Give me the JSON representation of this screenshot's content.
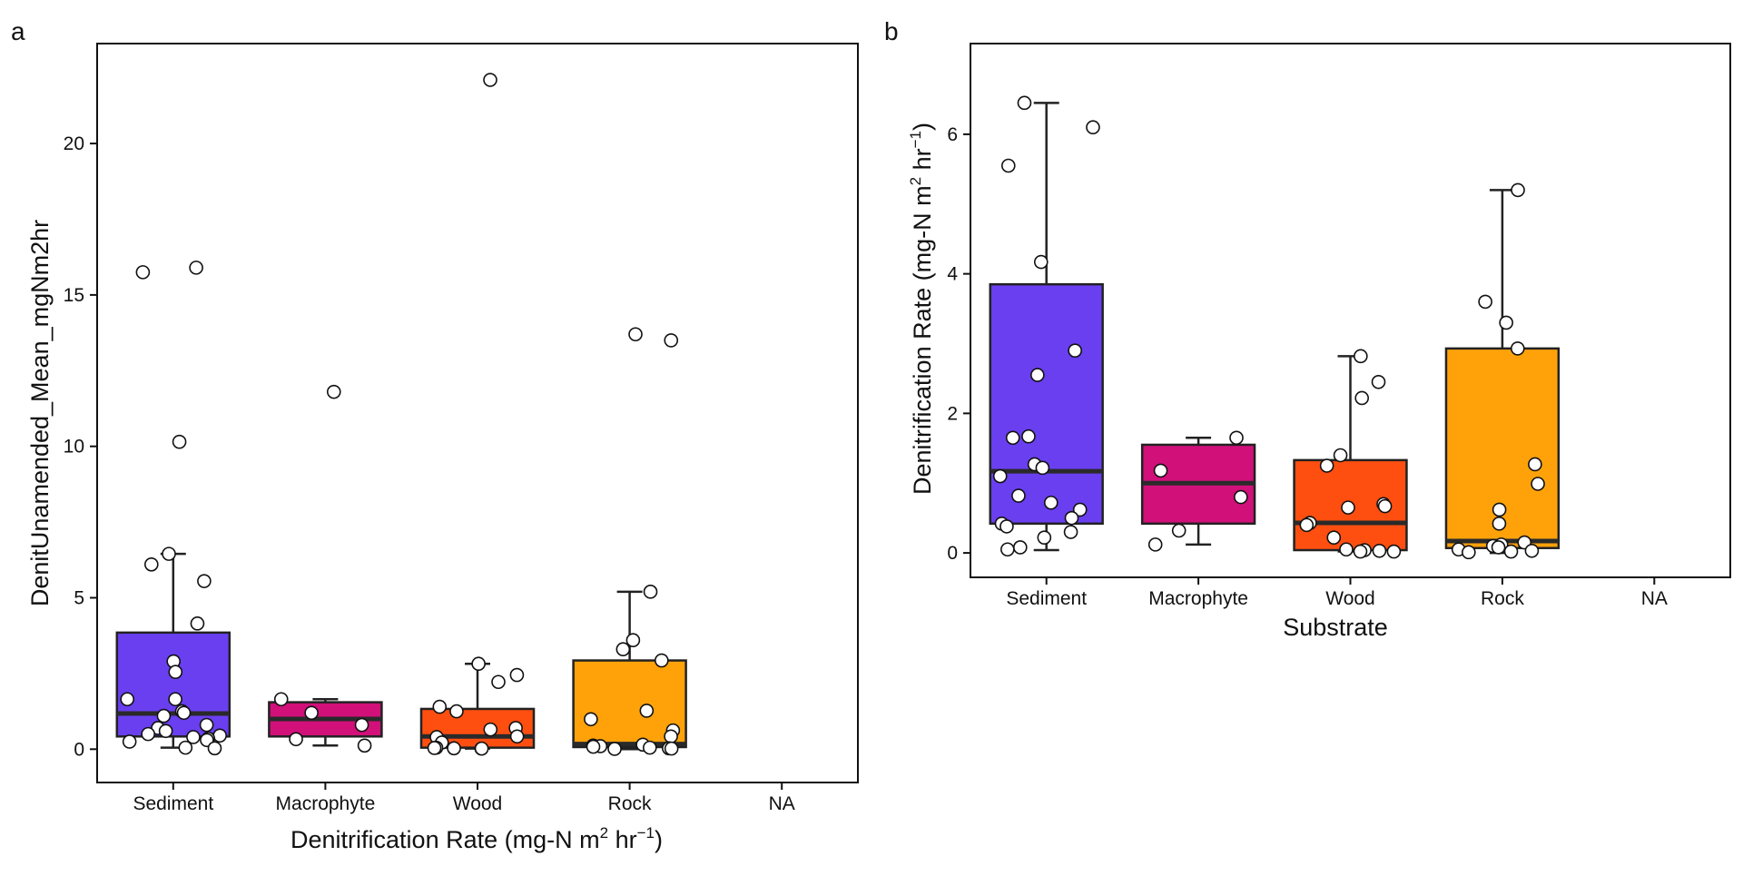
{
  "chart_data": [
    {
      "type": "box",
      "panel_label": "a",
      "categories": [
        "Sediment",
        "Macrophyte",
        "Wood",
        "Rock",
        "NA"
      ],
      "colors": [
        "#6a3ff0",
        "#d1107a",
        "#ff4f10",
        "#ffa20a",
        ""
      ],
      "xlabel": "Denitrification Rate (mg-N m",
      "xlabel_sup1": "2",
      "xlabel_mid": " hr",
      "xlabel_sup2": "−1",
      "xlabel_end": ")",
      "ylabel": "DenitUnamended_Mean_mgNm2hr",
      "ylim": [
        -1.1,
        23.3
      ],
      "yticks": [
        0,
        5,
        10,
        15,
        20
      ],
      "boxes": [
        {
          "category": "Sediment",
          "q1": 0.42,
          "median": 1.18,
          "q3": 3.85,
          "whisker_low": 0.05,
          "whisker_high": 6.45
        },
        {
          "category": "Macrophyte",
          "q1": 0.42,
          "median": 1.0,
          "q3": 1.55,
          "whisker_low": 0.12,
          "whisker_high": 1.65
        },
        {
          "category": "Wood",
          "q1": 0.05,
          "median": 0.42,
          "q3": 1.33,
          "whisker_low": 0.02,
          "whisker_high": 2.82
        },
        {
          "category": "Rock",
          "q1": 0.07,
          "median": 0.17,
          "q3": 2.93,
          "whisker_low": 0.0,
          "whisker_high": 5.2
        }
      ],
      "points": [
        {
          "category": "Sediment",
          "y": [
            15.75,
            15.9,
            10.15,
            6.45,
            6.1,
            5.55,
            4.15,
            2.9,
            2.55,
            1.65,
            1.65,
            1.25,
            1.2,
            1.1,
            0.8,
            0.7,
            0.6,
            0.5,
            0.45,
            0.4,
            0.35,
            0.3,
            0.25,
            0.05,
            0.03
          ]
        },
        {
          "category": "Macrophyte",
          "y": [
            11.8,
            1.65,
            1.2,
            0.8,
            0.33,
            0.12
          ]
        },
        {
          "category": "Wood",
          "y": [
            22.1,
            2.82,
            2.45,
            2.22,
            1.4,
            1.25,
            0.7,
            0.65,
            0.42,
            0.4,
            0.22,
            0.05,
            0.04,
            0.03,
            0.02,
            0.02
          ]
        },
        {
          "category": "Rock",
          "y": [
            13.7,
            13.5,
            5.2,
            3.6,
            3.3,
            2.93,
            1.27,
            0.99,
            0.62,
            0.42,
            0.15,
            0.12,
            0.1,
            0.08,
            0.05,
            0.03,
            0.02,
            0.01
          ]
        }
      ]
    },
    {
      "type": "box",
      "panel_label": "b",
      "categories": [
        "Sediment",
        "Macrophyte",
        "Wood",
        "Rock",
        "NA"
      ],
      "colors": [
        "#6a3ff0",
        "#d1107a",
        "#ff4f10",
        "#ffa20a",
        ""
      ],
      "xlabel": "Substrate",
      "ylabel": "Denitrification Rate (mg-N m",
      "ylabel_sup1": "2",
      "ylabel_mid": " hr",
      "ylabel_sup2": "−1",
      "ylabel_end": ")",
      "ylim": [
        -0.35,
        7.3
      ],
      "yticks": [
        0,
        2,
        4,
        6
      ],
      "boxes": [
        {
          "category": "Sediment",
          "q1": 0.42,
          "median": 1.17,
          "q3": 3.85,
          "whisker_low": 0.04,
          "whisker_high": 6.45
        },
        {
          "category": "Macrophyte",
          "q1": 0.42,
          "median": 1.0,
          "q3": 1.55,
          "whisker_low": 0.12,
          "whisker_high": 1.65
        },
        {
          "category": "Wood",
          "q1": 0.04,
          "median": 0.43,
          "q3": 1.33,
          "whisker_low": 0.02,
          "whisker_high": 2.82
        },
        {
          "category": "Rock",
          "q1": 0.07,
          "median": 0.17,
          "q3": 2.93,
          "whisker_low": 0.0,
          "whisker_high": 5.2
        }
      ],
      "points": [
        {
          "category": "Sediment",
          "y": [
            6.45,
            6.1,
            5.55,
            4.17,
            2.9,
            2.55,
            1.67,
            1.65,
            1.27,
            1.22,
            1.1,
            0.82,
            0.72,
            0.62,
            0.5,
            0.42,
            0.38,
            0.3,
            0.22,
            0.08,
            0.05
          ]
        },
        {
          "category": "Macrophyte",
          "y": [
            1.65,
            1.18,
            0.8,
            0.32,
            0.12
          ]
        },
        {
          "category": "Wood",
          "y": [
            2.82,
            2.45,
            2.22,
            1.4,
            1.25,
            0.7,
            0.67,
            0.65,
            0.43,
            0.4,
            0.22,
            0.05,
            0.04,
            0.03,
            0.02,
            0.02
          ]
        },
        {
          "category": "Rock",
          "y": [
            5.2,
            3.6,
            3.3,
            2.93,
            1.27,
            0.99,
            0.62,
            0.42,
            0.15,
            0.12,
            0.1,
            0.08,
            0.05,
            0.03,
            0.02,
            0.01
          ]
        }
      ]
    }
  ]
}
